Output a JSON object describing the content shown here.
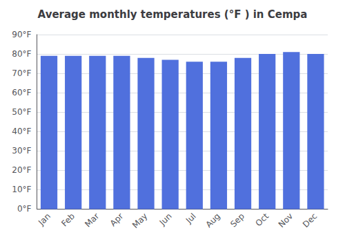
{
  "chart_data": {
    "type": "bar",
    "title": "Average monthly temperatures (°F ) in Cempa",
    "categories": [
      "Jan",
      "Feb",
      "Mar",
      "Apr",
      "May",
      "Jun",
      "Jul",
      "Aug",
      "Sep",
      "Oct",
      "Nov",
      "Dec"
    ],
    "values": [
      79,
      79,
      79,
      79,
      78,
      77,
      76,
      76,
      78,
      80,
      81,
      80
    ],
    "ylim": [
      0,
      90
    ],
    "yticks": [
      {
        "value": 0,
        "label": "0°F"
      },
      {
        "value": 10,
        "label": "10°F"
      },
      {
        "value": 20,
        "label": "20°F"
      },
      {
        "value": 30,
        "label": "30°F"
      },
      {
        "value": 40,
        "label": "40°F"
      },
      {
        "value": 50,
        "label": "50°F"
      },
      {
        "value": 60,
        "label": "60°F"
      },
      {
        "value": 70,
        "label": "70°F"
      },
      {
        "value": 80,
        "label": "80°F"
      },
      {
        "value": 90,
        "label": "90°F"
      }
    ],
    "grid": true
  }
}
